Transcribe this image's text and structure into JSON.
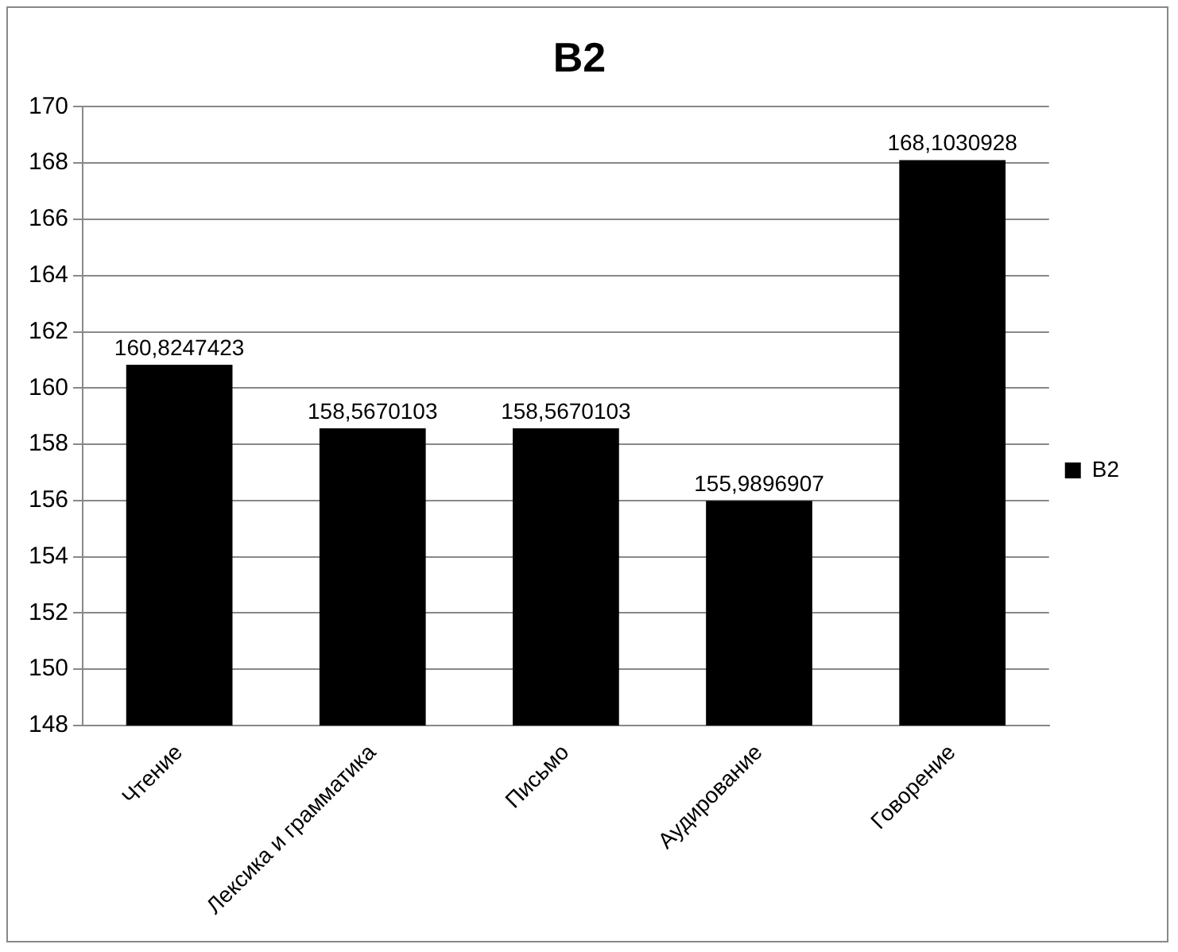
{
  "chart_data": {
    "type": "bar",
    "title": "B2",
    "categories": [
      "Чтение",
      "Лексика и грамматика",
      "Письмо",
      "Аудирование",
      "Говорение"
    ],
    "series": [
      {
        "name": "B2",
        "color": "#000000",
        "values": [
          160.8247423,
          158.5670103,
          158.5670103,
          155.9896907,
          168.1030928
        ],
        "value_labels": [
          "160,8247423",
          "158,5670103",
          "158,5670103",
          "155,9896907",
          "168,1030928"
        ]
      }
    ],
    "ylim": [
      148,
      170
    ],
    "yticks": [
      148,
      150,
      152,
      154,
      156,
      158,
      160,
      162,
      164,
      166,
      168,
      170
    ],
    "grid": "y",
    "legend": "right"
  }
}
